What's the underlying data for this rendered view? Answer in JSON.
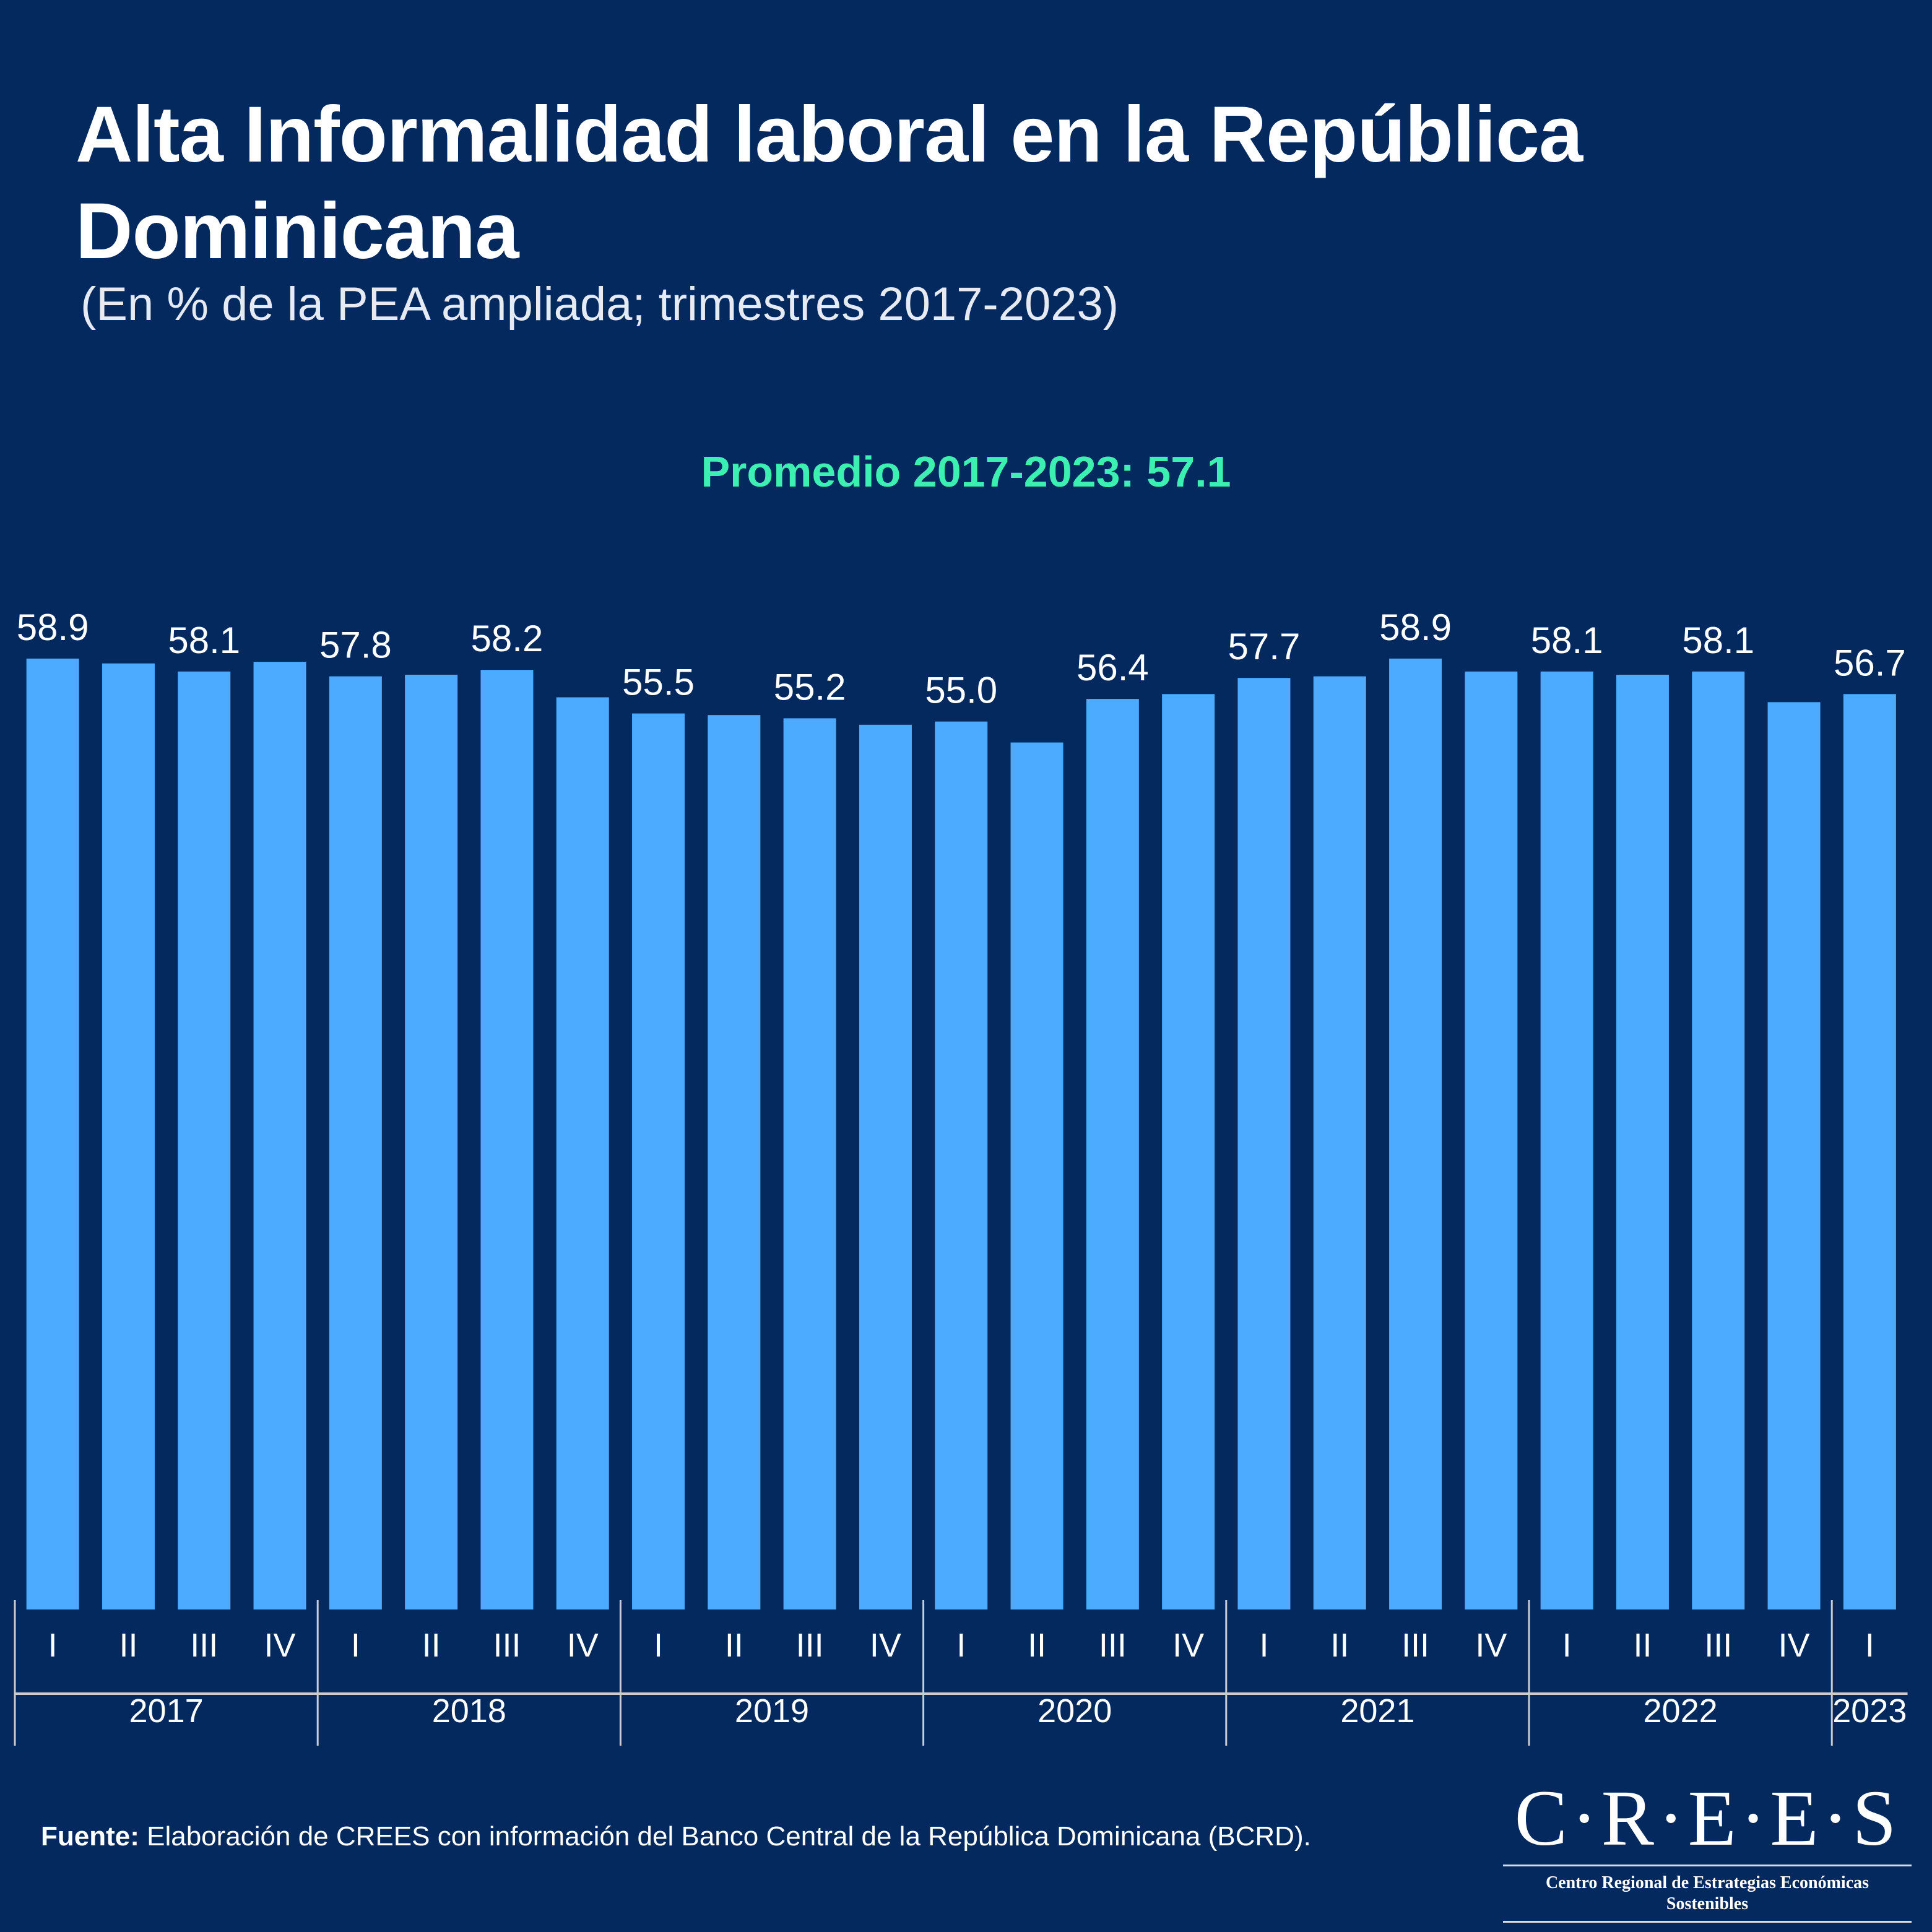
{
  "header": {
    "title": "Alta Informalidad laboral en la República Dominicana",
    "subtitle": "(En % de la PEA ampliada; trimestres 2017-2023)",
    "average_note": "Promedio 2017-2023: 57.1"
  },
  "footer": {
    "source_label": "Fuente:",
    "source_text": " Elaboración de CREES con información del Banco Central de la República Dominicana (BCRD)."
  },
  "logo": {
    "name": "C·R·E·E·S",
    "tagline": "Centro Regional de Estrategias Económicas Sostenibles"
  },
  "colors": {
    "background": "#03295e",
    "bar": "#4dabff",
    "average_text": "#3cf0b1",
    "axis": "#c8ccd4"
  },
  "chart_data": {
    "type": "bar",
    "title": "Alta Informalidad laboral en la República Dominicana",
    "subtitle": "(En % de la PEA ampliada; trimestres 2017-2023)",
    "xlabel": "",
    "ylabel": "% de la PEA ampliada",
    "ylim": [
      0,
      60
    ],
    "grid": false,
    "legend": "none",
    "categories": [
      "I",
      "II",
      "III",
      "IV",
      "I",
      "II",
      "III",
      "IV",
      "I",
      "II",
      "III",
      "IV",
      "I",
      "II",
      "III",
      "IV",
      "I",
      "II",
      "III",
      "IV",
      "I",
      "II",
      "III",
      "IV",
      "I"
    ],
    "years": [
      {
        "label": "2017",
        "quarters": 4
      },
      {
        "label": "2018",
        "quarters": 4
      },
      {
        "label": "2019",
        "quarters": 4
      },
      {
        "label": "2020",
        "quarters": 4
      },
      {
        "label": "2021",
        "quarters": 4
      },
      {
        "label": "2022",
        "quarters": 4
      },
      {
        "label": "2023",
        "quarters": 1
      }
    ],
    "values": [
      58.9,
      58.6,
      58.1,
      58.7,
      57.8,
      57.9,
      58.2,
      56.5,
      55.5,
      55.4,
      55.2,
      54.8,
      55.0,
      53.7,
      56.4,
      56.7,
      57.7,
      57.8,
      58.9,
      58.1,
      58.1,
      57.9,
      58.1,
      56.2,
      56.7
    ],
    "data_labels": [
      "58.9",
      "",
      "58.1",
      "",
      "57.8",
      "",
      "58.2",
      "",
      "55.5",
      "",
      "55.2",
      "",
      "55.0",
      "",
      "56.4",
      "",
      "57.7",
      "",
      "58.9",
      "",
      "58.1",
      "",
      "58.1",
      "",
      "56.7"
    ],
    "average": 57.1
  }
}
